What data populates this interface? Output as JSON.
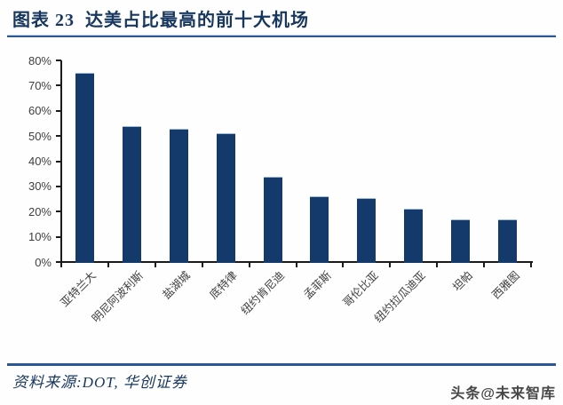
{
  "figure": {
    "title": "图表 23  达美占比最高的前十大机场",
    "source_text": "资料来源:DOT, 华创证券",
    "watermark": "头条@未来智库"
  },
  "colors": {
    "bar": "#133A6B",
    "title_text": "#17375E",
    "rule_blue": "#2B5797",
    "tick_label": "#404040"
  },
  "chart_data": {
    "type": "bar",
    "title": "达美占比最高的前十大机场",
    "categories": [
      "亚特兰大",
      "明尼阿波利斯",
      "盐湖城",
      "底特律",
      "纽约肯尼迪",
      "孟菲斯",
      "哥伦比亚",
      "纽约拉瓜迪亚",
      "坦帕",
      "西雅图"
    ],
    "values": [
      75,
      54,
      53,
      51,
      34,
      26,
      25.5,
      21,
      17,
      17
    ],
    "unit": "%",
    "xlabel": "",
    "ylabel": "",
    "ylim": [
      0,
      80
    ],
    "ytick_step": 10,
    "ytick_labels": [
      "0%",
      "10%",
      "20%",
      "30%",
      "40%",
      "50%",
      "60%",
      "70%",
      "80%"
    ],
    "grid": false,
    "legend_position": "none",
    "bar_color": "#133A6B"
  }
}
